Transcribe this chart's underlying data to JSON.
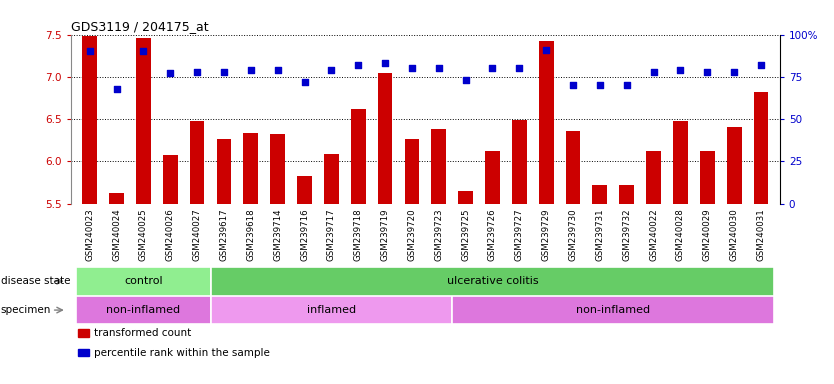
{
  "title": "GDS3119 / 204175_at",
  "samples": [
    "GSM240023",
    "GSM240024",
    "GSM240025",
    "GSM240026",
    "GSM240027",
    "GSM239617",
    "GSM239618",
    "GSM239714",
    "GSM239716",
    "GSM239717",
    "GSM239718",
    "GSM239719",
    "GSM239720",
    "GSM239723",
    "GSM239725",
    "GSM239726",
    "GSM239727",
    "GSM239729",
    "GSM239730",
    "GSM239731",
    "GSM239732",
    "GSM240022",
    "GSM240028",
    "GSM240029",
    "GSM240030",
    "GSM240031"
  ],
  "bar_values": [
    7.48,
    5.62,
    7.46,
    6.08,
    6.48,
    6.26,
    6.33,
    6.32,
    5.82,
    6.09,
    6.62,
    7.04,
    6.26,
    6.38,
    5.65,
    6.12,
    6.49,
    7.42,
    6.36,
    5.72,
    5.72,
    6.12,
    6.48,
    6.12,
    6.41,
    6.82
  ],
  "percentile_values": [
    90,
    68,
    90,
    77,
    78,
    78,
    79,
    79,
    72,
    79,
    82,
    83,
    80,
    80,
    73,
    80,
    80,
    91,
    70,
    70,
    70,
    78,
    79,
    78,
    78,
    82
  ],
  "ylim_left": [
    5.5,
    7.5
  ],
  "ylim_right": [
    0,
    100
  ],
  "yticks_left": [
    5.5,
    6.0,
    6.5,
    7.0,
    7.5
  ],
  "yticks_right": [
    0,
    25,
    50,
    75,
    100
  ],
  "bar_color": "#cc0000",
  "dot_color": "#0000cc",
  "bar_bottom": 5.5,
  "disease_state_groups": [
    {
      "label": "control",
      "start": 0,
      "end": 5,
      "color": "#90ee90"
    },
    {
      "label": "ulcerative colitis",
      "start": 5,
      "end": 26,
      "color": "#66cc66"
    }
  ],
  "specimen_groups": [
    {
      "label": "non-inflamed",
      "start": 0,
      "end": 5,
      "color": "#dd77dd"
    },
    {
      "label": "inflamed",
      "start": 5,
      "end": 14,
      "color": "#ee99ee"
    },
    {
      "label": "non-inflamed",
      "start": 14,
      "end": 26,
      "color": "#dd77dd"
    }
  ],
  "legend_items": [
    {
      "color": "#cc0000",
      "label": "transformed count"
    },
    {
      "color": "#0000cc",
      "label": "percentile rank within the sample"
    }
  ],
  "plot_bg": "#ffffff",
  "fig_bg": "#ffffff"
}
